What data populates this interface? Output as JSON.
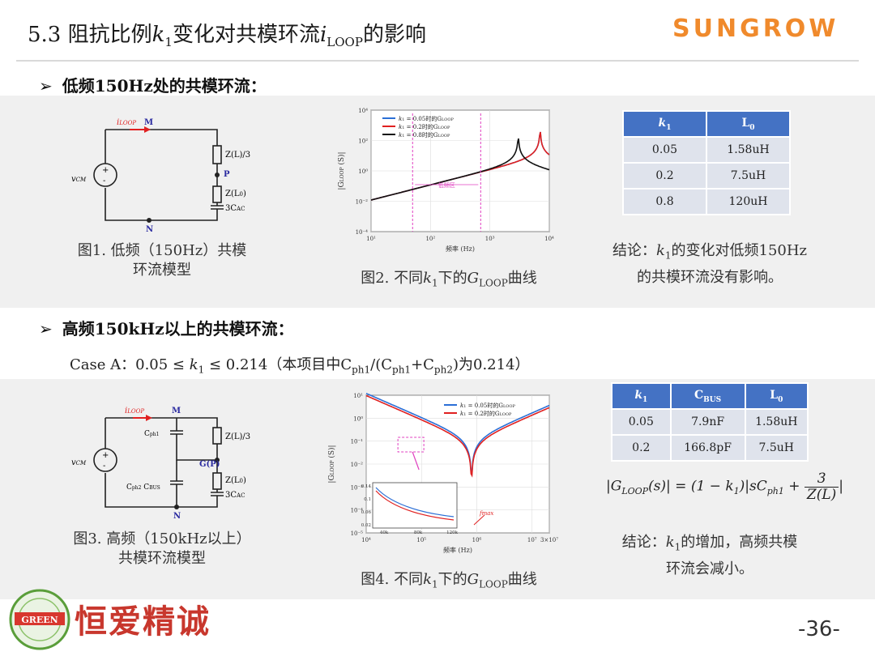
{
  "slide": {
    "title_pre": "5.3 阻抗比例",
    "title_k": "k",
    "title_k_sub": "1",
    "title_mid": "变化对共模环流",
    "title_i": "i",
    "title_i_sub": "LOOP",
    "title_post": "的影响",
    "brand_logo": "SUNGROW",
    "footer_slogan": "恒爱精诚",
    "footer_badge": "GREEN",
    "page_number": "-36-"
  },
  "section1": {
    "heading": "低频150Hz处的共模环流：",
    "circuit": {
      "i_label": "i",
      "i_sub": "LOOP",
      "node_m": "M",
      "node_p": "P",
      "node_n": "N",
      "z_top": "Z(L)/3",
      "z_bottom": "Z(L",
      "z_bottom_sub": "0",
      "cap": "3C",
      "cap_sub": "AC",
      "source_v": "v",
      "source_sub": "CM"
    },
    "fig1_caption_line1": "图1. 低频（150Hz）共模",
    "fig1_caption_line2": "环流模型",
    "fig2_caption_pre": "图2. 不同",
    "fig2_caption_k": "k",
    "fig2_caption_k_sub": "1",
    "fig2_caption_mid": "下的",
    "fig2_caption_g": "G",
    "fig2_caption_g_sub": "LOOP",
    "fig2_caption_post": "曲线",
    "table": {
      "headers": [
        "k1",
        "L0"
      ],
      "rows": [
        [
          "0.05",
          "1.58uH"
        ],
        [
          "0.2",
          "7.5uH"
        ],
        [
          "0.8",
          "120uH"
        ]
      ]
    },
    "conclusion_line1_pre": "结论：",
    "conclusion_k": "k",
    "conclusion_k_sub": "1",
    "conclusion_line1_post": "的变化对低频150Hz",
    "conclusion_line2": "的共模环流没有影响。"
  },
  "section2": {
    "heading": "高频150kHz以上的共模环流：",
    "case_pre": "Case A：0.05 ≤ ",
    "case_k": "k",
    "case_k_sub": "1",
    "case_mid": " ≤ 0.214（本项目中C",
    "case_sub1": "ph1",
    "case_mid2": "/(C",
    "case_sub2": "ph1",
    "case_mid3": "+C",
    "case_sub3": "ph2",
    "case_post": ")为0.214）",
    "circuit": {
      "i_label": "i",
      "i_sub": "LOOP",
      "node_m": "M",
      "node_gp": "G(P)",
      "node_n": "N",
      "cph1": "C",
      "cph1_sub": "ph1",
      "cph2": "C",
      "cph2_sub": "ph2",
      "cbus": "C",
      "cbus_sub": "BUS",
      "z_top": "Z(L)/3",
      "z_bottom": "Z(L",
      "z_bottom_sub": "0",
      "cap": "3C",
      "cap_sub": "AC",
      "source_v": "v",
      "source_sub": "CM"
    },
    "fig3_caption_line1": "图3. 高频（150kHz以上）",
    "fig3_caption_line2": "共模环流模型",
    "fig4_caption_pre": "图4. 不同",
    "fig4_caption_k": "k",
    "fig4_caption_k_sub": "1",
    "fig4_caption_mid": "下的",
    "fig4_caption_g": "G",
    "fig4_caption_g_sub": "LOOP",
    "fig4_caption_post": "曲线",
    "table": {
      "headers": [
        "k1",
        "CBUS",
        "L0"
      ],
      "rows": [
        [
          "0.05",
          "7.9nF",
          "1.58uH"
        ],
        [
          "0.2",
          "166.8pF",
          "7.5uH"
        ]
      ]
    },
    "formula_lhs": "|G",
    "formula_lhs_sub": "LOOP",
    "formula_lhs_post": "(s)| = (1 − k",
    "formula_k_sub": "1",
    "formula_mid": ")|sC",
    "formula_c_sub": "ph1",
    "formula_plus": " + ",
    "formula_num": "3",
    "formula_den": "Z(L)",
    "conclusion_line1_pre": "结论：",
    "conclusion_k": "k",
    "conclusion_k_sub": "1",
    "conclusion_line1_post": "的增加，高频共模",
    "conclusion_line2": "环流会减小。"
  },
  "chart_data": [
    {
      "type": "line",
      "xscale": "log",
      "yscale": "log",
      "xlabel": "频率 (Hz)",
      "ylabel": "|G",
      "ylabel_sub": "LOOP",
      "ylabel_post": " (S)|",
      "xticks": [
        "10¹",
        "10²",
        "10³",
        "10⁴"
      ],
      "yticks": [
        "10⁴",
        "10²",
        "10⁰",
        "10⁻²",
        "10⁻⁴"
      ],
      "xlim": [
        10,
        10000
      ],
      "ylim": [
        0.0001,
        10000
      ],
      "annotation": "低频区",
      "legend": [
        {
          "pre": "k",
          "sub": "1",
          "post": " = 0.05时的G",
          "gsub": "LOOP",
          "color": "#2b6fd6"
        },
        {
          "pre": "k",
          "sub": "1",
          "post": " = 0.2时的G",
          "gsub": "LOOP",
          "color": "#e02020"
        },
        {
          "pre": "k",
          "sub": "1",
          "post": " = 0.8时的G",
          "gsub": "LOOP",
          "color": "#111111"
        }
      ],
      "series": [
        {
          "color": "#2b6fd6",
          "resonance_hz": 7000,
          "peak": 900
        },
        {
          "color": "#e02020",
          "resonance_hz": 7000,
          "peak": 900
        },
        {
          "color": "#111111",
          "resonance_hz": 3000,
          "peak": 80
        }
      ]
    },
    {
      "type": "line",
      "xscale": "log",
      "yscale": "log",
      "xlabel": "频率 (Hz)",
      "ylabel": "|G",
      "ylabel_sub": "LOOP",
      "ylabel_post": " (S)|",
      "xticks": [
        "10⁴",
        "10⁵",
        "10⁶",
        "10⁷",
        "3×10⁷"
      ],
      "yticks": [
        "10¹",
        "10⁰",
        "10⁻¹",
        "10⁻²",
        "10⁻³",
        "10⁻⁴",
        "10⁻⁵"
      ],
      "xlim": [
        10000,
        30000000
      ],
      "ylim": [
        1e-05,
        10
      ],
      "annotation": "fmax",
      "inset": {
        "xticks": [
          "40k",
          "80k",
          "120k"
        ],
        "yticks": [
          "0.14",
          "0.1",
          "0.06",
          "0.02"
        ]
      },
      "legend": [
        {
          "pre": "k",
          "sub": "1",
          "post": " = 0.05时的G",
          "gsub": "LOOP",
          "color": "#2b6fd6"
        },
        {
          "pre": "k",
          "sub": "1",
          "post": " = 0.2时的G",
          "gsub": "LOOP",
          "color": "#e02020"
        }
      ],
      "series": [
        {
          "color": "#2b6fd6",
          "fmax_hz": 1000000
        },
        {
          "color": "#e02020",
          "fmax_hz": 1000000
        }
      ]
    }
  ]
}
